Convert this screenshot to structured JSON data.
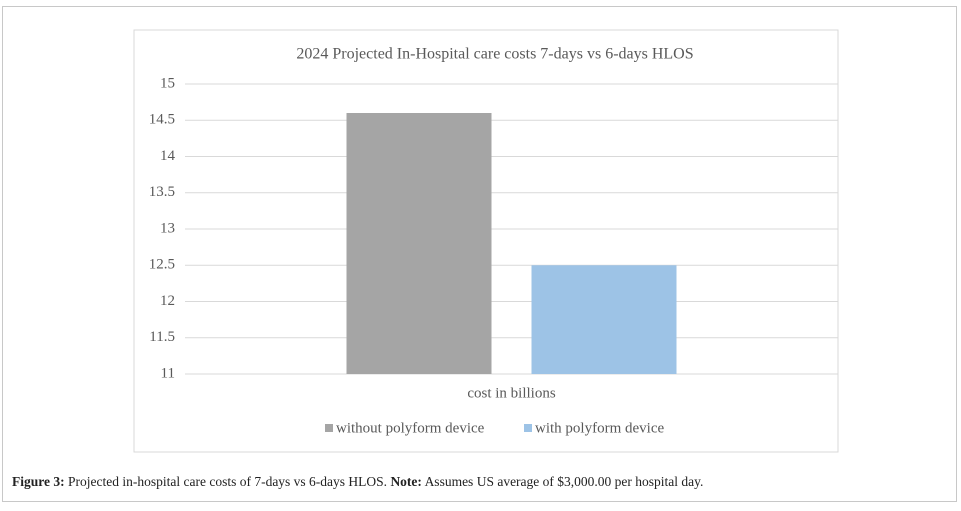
{
  "chart_data": {
    "type": "bar",
    "title": "2024 Projected In-Hospital care costs 7-days vs 6-days HLOS",
    "categories": [
      "cost in billions"
    ],
    "series": [
      {
        "name": "without polyform device",
        "color": "#a5a5a5",
        "values": [
          14.6
        ]
      },
      {
        "name": "with polyform device",
        "color": "#9dc3e6",
        "values": [
          12.5
        ]
      }
    ],
    "ylim": [
      11,
      15
    ],
    "yticks": [
      11,
      11.5,
      12,
      12.5,
      13,
      13.5,
      14,
      14.5,
      15
    ],
    "grid": true,
    "legend": "bottom"
  },
  "caption": {
    "label": "Figure 3:",
    "text": "Projected in-hospital care costs of 7-days vs 6-days HLOS.",
    "note_label": "Note:",
    "note_text": "Assumes US average of $3,000.00 per hospital day."
  }
}
